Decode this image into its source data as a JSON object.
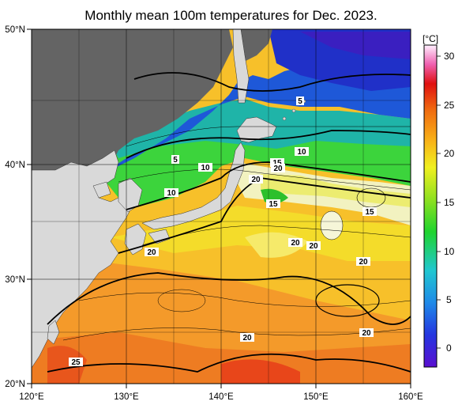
{
  "title": "Monthly mean 100m temperatures for Dec. 2023.",
  "map": {
    "lon_range": [
      120,
      160
    ],
    "lat_range": [
      20,
      50
    ],
    "lon_ticks": [
      "120°E",
      "130°E",
      "140°E",
      "150°E",
      "160°E"
    ],
    "lat_ticks": [
      "50°N",
      "40°N",
      "30°N",
      "20°N"
    ],
    "grid": true,
    "land_color": "#d9d9d9",
    "nodata_color": "#646464"
  },
  "colorbar": {
    "unit": "[°C]",
    "ticks": [
      "30",
      "25",
      "20",
      "15",
      "10",
      "5",
      "0"
    ],
    "range": [
      -2,
      31
    ]
  },
  "contour_labels": [
    "5",
    "5",
    "10",
    "10",
    "10",
    "15",
    "15",
    "15",
    "20",
    "20",
    "20",
    "20",
    "20",
    "20",
    "20",
    "20",
    "25"
  ]
}
